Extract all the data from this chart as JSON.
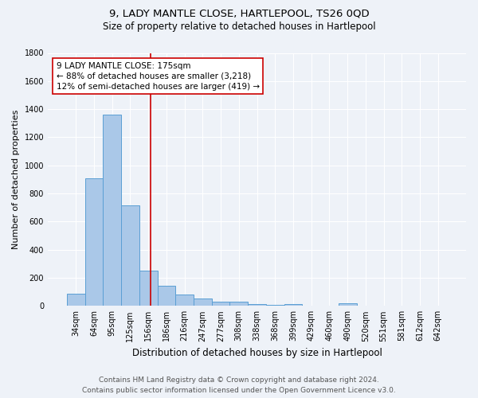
{
  "title": "9, LADY MANTLE CLOSE, HARTLEPOOL, TS26 0QD",
  "subtitle": "Size of property relative to detached houses in Hartlepool",
  "xlabel": "Distribution of detached houses by size in Hartlepool",
  "ylabel": "Number of detached properties",
  "categories": [
    "34sqm",
    "64sqm",
    "95sqm",
    "125sqm",
    "156sqm",
    "186sqm",
    "216sqm",
    "247sqm",
    "277sqm",
    "308sqm",
    "338sqm",
    "368sqm",
    "399sqm",
    "429sqm",
    "460sqm",
    "490sqm",
    "520sqm",
    "551sqm",
    "581sqm",
    "612sqm",
    "642sqm"
  ],
  "values": [
    85,
    910,
    1360,
    715,
    250,
    145,
    82,
    52,
    28,
    30,
    14,
    8,
    12,
    0,
    0,
    18,
    0,
    0,
    0,
    0,
    0
  ],
  "bar_color": "#aac8e8",
  "bar_edge_color": "#5a9fd4",
  "property_line_color": "#cc0000",
  "annotation_text": "9 LADY MANTLE CLOSE: 175sqm\n← 88% of detached houses are smaller (3,218)\n12% of semi-detached houses are larger (419) →",
  "annotation_box_color": "#ffffff",
  "annotation_box_edge": "#cc0000",
  "ylim": [
    0,
    1800
  ],
  "yticks": [
    0,
    200,
    400,
    600,
    800,
    1000,
    1200,
    1400,
    1600,
    1800
  ],
  "background_color": "#eef2f8",
  "grid_color": "#ffffff",
  "footer_line1": "Contains HM Land Registry data © Crown copyright and database right 2024.",
  "footer_line2": "Contains public sector information licensed under the Open Government Licence v3.0.",
  "title_fontsize": 9.5,
  "subtitle_fontsize": 8.5,
  "xlabel_fontsize": 8.5,
  "ylabel_fontsize": 8,
  "tick_fontsize": 7,
  "annotation_fontsize": 7.5,
  "footer_fontsize": 6.5
}
